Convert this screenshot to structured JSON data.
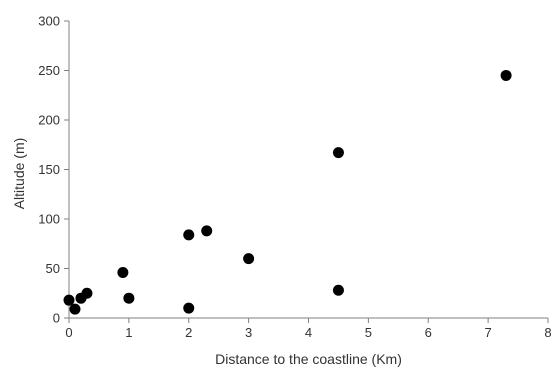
{
  "chart_data": {
    "type": "scatter",
    "title": "",
    "xlabel": "Distance to the coastline (Km)",
    "ylabel": "Altitude (m)",
    "xlim": [
      0,
      8
    ],
    "ylim": [
      0,
      300
    ],
    "x_ticks": [
      0,
      1,
      2,
      3,
      4,
      5,
      6,
      7,
      8
    ],
    "y_ticks": [
      0,
      50,
      100,
      150,
      200,
      250,
      300
    ],
    "grid": false,
    "legend": "none",
    "marker_color": "#000000",
    "points": [
      {
        "x": 0.0,
        "y": 18
      },
      {
        "x": 0.1,
        "y": 9
      },
      {
        "x": 0.2,
        "y": 20
      },
      {
        "x": 0.3,
        "y": 25
      },
      {
        "x": 0.9,
        "y": 46
      },
      {
        "x": 1.0,
        "y": 20
      },
      {
        "x": 2.0,
        "y": 84
      },
      {
        "x": 2.0,
        "y": 10
      },
      {
        "x": 2.3,
        "y": 88
      },
      {
        "x": 3.0,
        "y": 60
      },
      {
        "x": 4.5,
        "y": 167
      },
      {
        "x": 4.5,
        "y": 28
      },
      {
        "x": 7.3,
        "y": 245
      }
    ]
  }
}
